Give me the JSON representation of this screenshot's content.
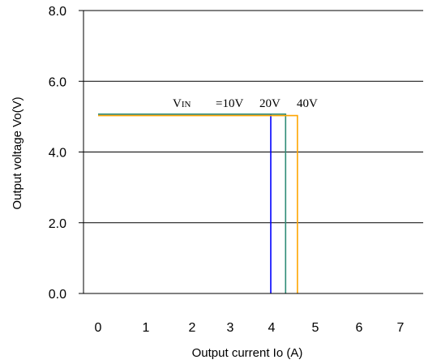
{
  "chart_data": {
    "type": "line",
    "title": "",
    "xlabel": "Output current Io (A)",
    "ylabel": "Output voltage Vo(V)",
    "xlim": [
      0,
      7
    ],
    "ylim": [
      0,
      8
    ],
    "x_ticks": [
      "0",
      "1",
      "2",
      "3",
      "4",
      "5",
      "6",
      "7"
    ],
    "y_ticks": [
      "0.0",
      "2.0",
      "4.0",
      "6.0",
      "8.0"
    ],
    "grid": "horizontal",
    "annotation": {
      "vin_label": "V",
      "vin_sub": "IN",
      "v10": "=10V",
      "v20": "20V",
      "v40": "40V"
    },
    "series": [
      {
        "name": "10V",
        "color": "#0000ff",
        "points": [
          [
            0,
            5.07
          ],
          [
            3.98,
            5.07
          ],
          [
            3.98,
            0
          ]
        ]
      },
      {
        "name": "20V",
        "color": "#2e8b76",
        "points": [
          [
            0,
            5.07
          ],
          [
            4.32,
            5.07
          ],
          [
            4.32,
            0
          ]
        ]
      },
      {
        "name": "40V",
        "color": "#ffa500",
        "points": [
          [
            0,
            5.03
          ],
          [
            4.59,
            5.03
          ],
          [
            4.59,
            0
          ]
        ]
      }
    ]
  }
}
